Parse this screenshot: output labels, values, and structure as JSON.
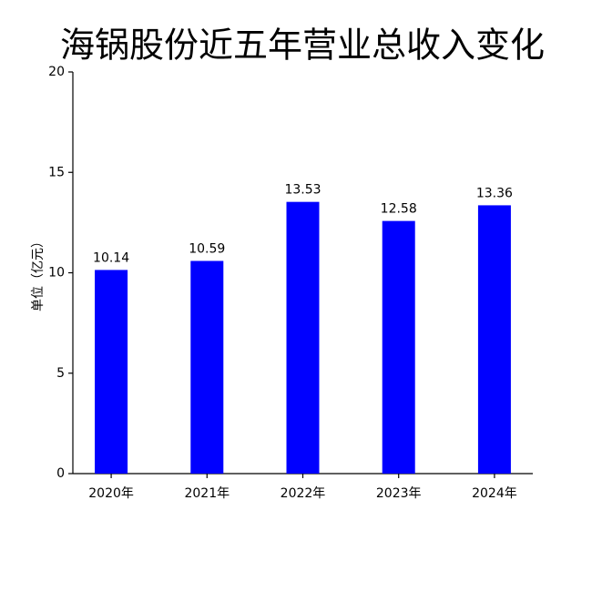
{
  "chart_data": {
    "type": "bar",
    "title": "海锅股份近五年营业总收入变化",
    "y_label": "单位（亿元）",
    "categories": [
      "2020年",
      "2021年",
      "2022年",
      "2023年",
      "2024年"
    ],
    "values": [
      10.14,
      10.59,
      13.53,
      12.58,
      13.36
    ],
    "color": "#0000ff",
    "ylim": [
      0,
      20
    ],
    "yticks": [
      0,
      5,
      10,
      15,
      20
    ],
    "data_labels": true
  }
}
